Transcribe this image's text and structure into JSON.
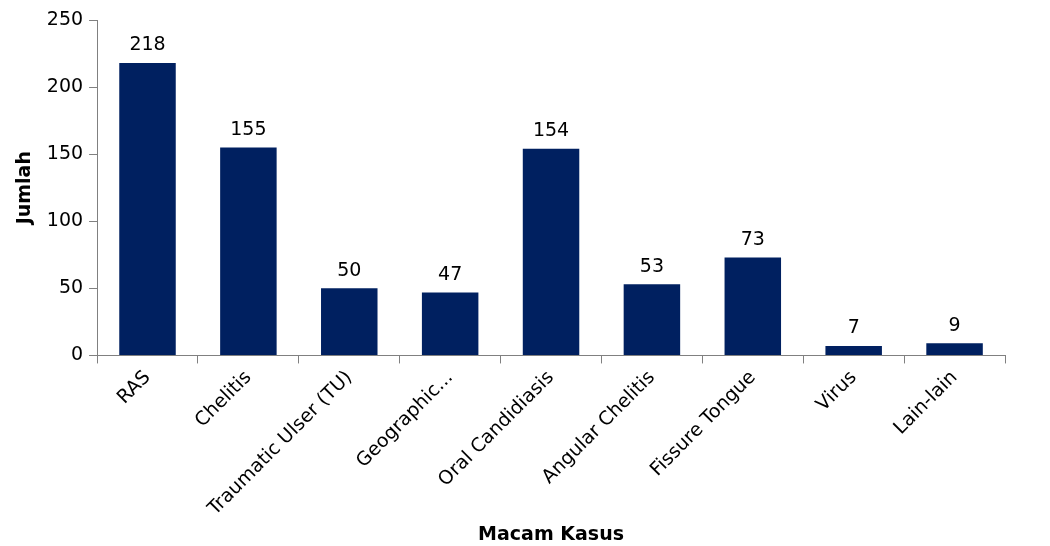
{
  "chart_data": {
    "type": "bar",
    "xlabel": "Macam Kasus",
    "ylabel": "Jumlah",
    "categories": [
      "RAS",
      "Chelitis",
      "Traumatic Ulser (TU)",
      "Geographic...",
      "Oral Candidiasis",
      "Angular Chelitis",
      "Fissure Tongue",
      "Virus",
      "Lain-lain"
    ],
    "values": [
      218,
      155,
      50,
      47,
      154,
      53,
      73,
      7,
      9
    ],
    "color": "#002060",
    "ylim": [
      0,
      250
    ],
    "yticks": [
      0,
      50,
      100,
      150,
      200,
      250
    ],
    "grid": false,
    "legend": false,
    "data_labels": true
  }
}
